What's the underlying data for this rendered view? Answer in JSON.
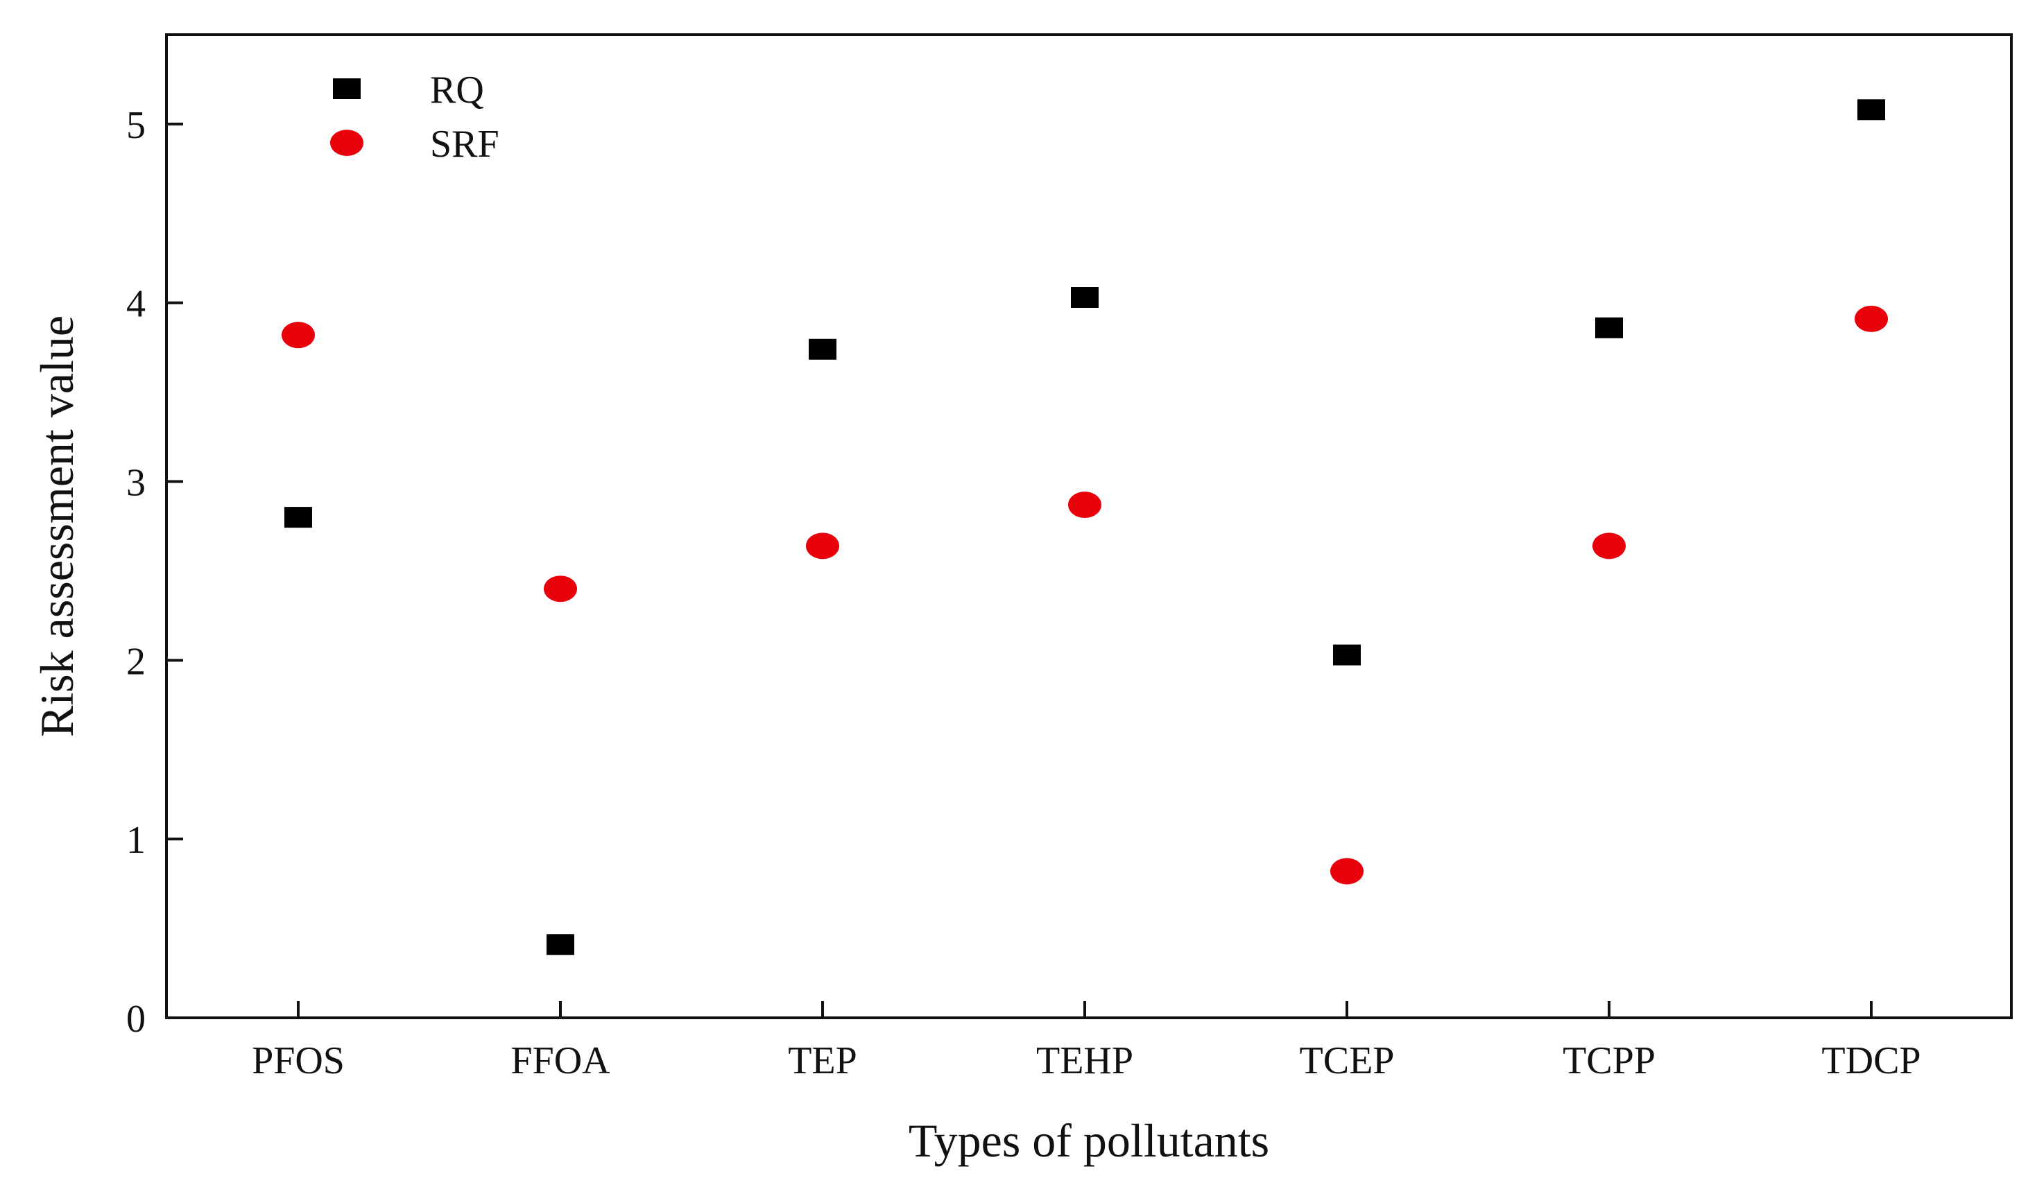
{
  "chart_data": {
    "type": "scatter",
    "title": "",
    "xlabel": "Types of pollutants",
    "ylabel": "Risk assessment value",
    "categories": [
      "PFOS",
      "FFOA",
      "TEP",
      "TEHP",
      "TCEP",
      "TCPP",
      "TDCP"
    ],
    "ylim": [
      0,
      5.5
    ],
    "yticks": [
      0,
      1,
      2,
      3,
      4,
      5
    ],
    "grid": false,
    "legend_position": "top-left",
    "series": [
      {
        "name": "RQ",
        "marker": "square",
        "color": "#000000",
        "values": [
          2.8,
          0.41,
          3.74,
          4.03,
          2.03,
          3.86,
          5.08
        ]
      },
      {
        "name": "SRF",
        "marker": "circle",
        "color": "#e8000b",
        "values": [
          3.82,
          2.4,
          2.64,
          2.87,
          0.82,
          2.64,
          3.91
        ]
      }
    ]
  }
}
